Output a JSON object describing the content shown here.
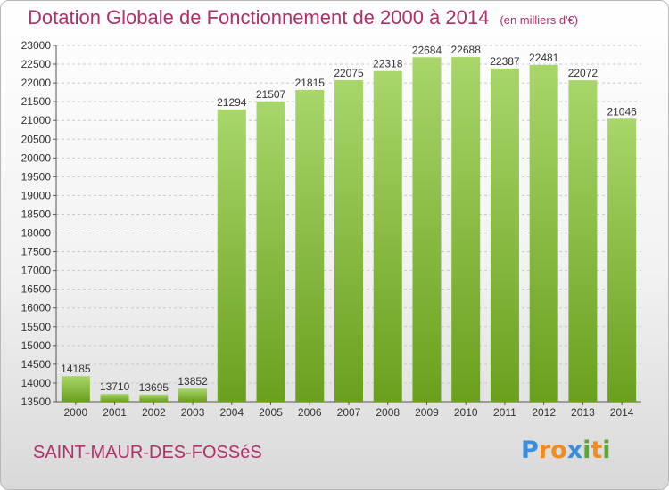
{
  "title": "Dotation Globale de Fonctionnement de 2000 à 2014",
  "title_unit": "(en milliers d'€)",
  "commune": "SAINT-MAUR-DES-FOSSéS",
  "logo": {
    "text": "Proxiti",
    "letters": [
      {
        "ch": "P",
        "color": "#3a8fd6"
      },
      {
        "ch": "r",
        "color": "#f28c1e"
      },
      {
        "ch": "o",
        "color": "#f28c1e"
      },
      {
        "ch": "x",
        "color": "#3a8fd6"
      },
      {
        "ch": "i",
        "color": "#5aa830"
      },
      {
        "ch": "t",
        "color": "#f28c1e"
      },
      {
        "ch": "i",
        "color": "#5aa830"
      }
    ]
  },
  "colors": {
    "title": "#b0306a",
    "bar_light": "#a8d66a",
    "bar_dark": "#6aa01e",
    "grid": "#c8c8c8",
    "axis": "#555555"
  },
  "chart_data": {
    "type": "bar",
    "categories": [
      "2000",
      "2001",
      "2002",
      "2003",
      "2004",
      "2005",
      "2006",
      "2007",
      "2008",
      "2009",
      "2010",
      "2011",
      "2012",
      "2013",
      "2014"
    ],
    "values": [
      14185,
      13710,
      13695,
      13852,
      21294,
      21507,
      21815,
      22075,
      22318,
      22684,
      22688,
      22387,
      22481,
      22072,
      21046
    ],
    "ylim": [
      13500,
      23000
    ],
    "yticks": [
      13500,
      14000,
      14500,
      15000,
      15500,
      16000,
      16500,
      17000,
      17500,
      18000,
      18500,
      19000,
      19500,
      20000,
      20500,
      21000,
      21500,
      22000,
      22500,
      23000
    ],
    "grid": true,
    "xlabel": "",
    "ylabel": ""
  }
}
